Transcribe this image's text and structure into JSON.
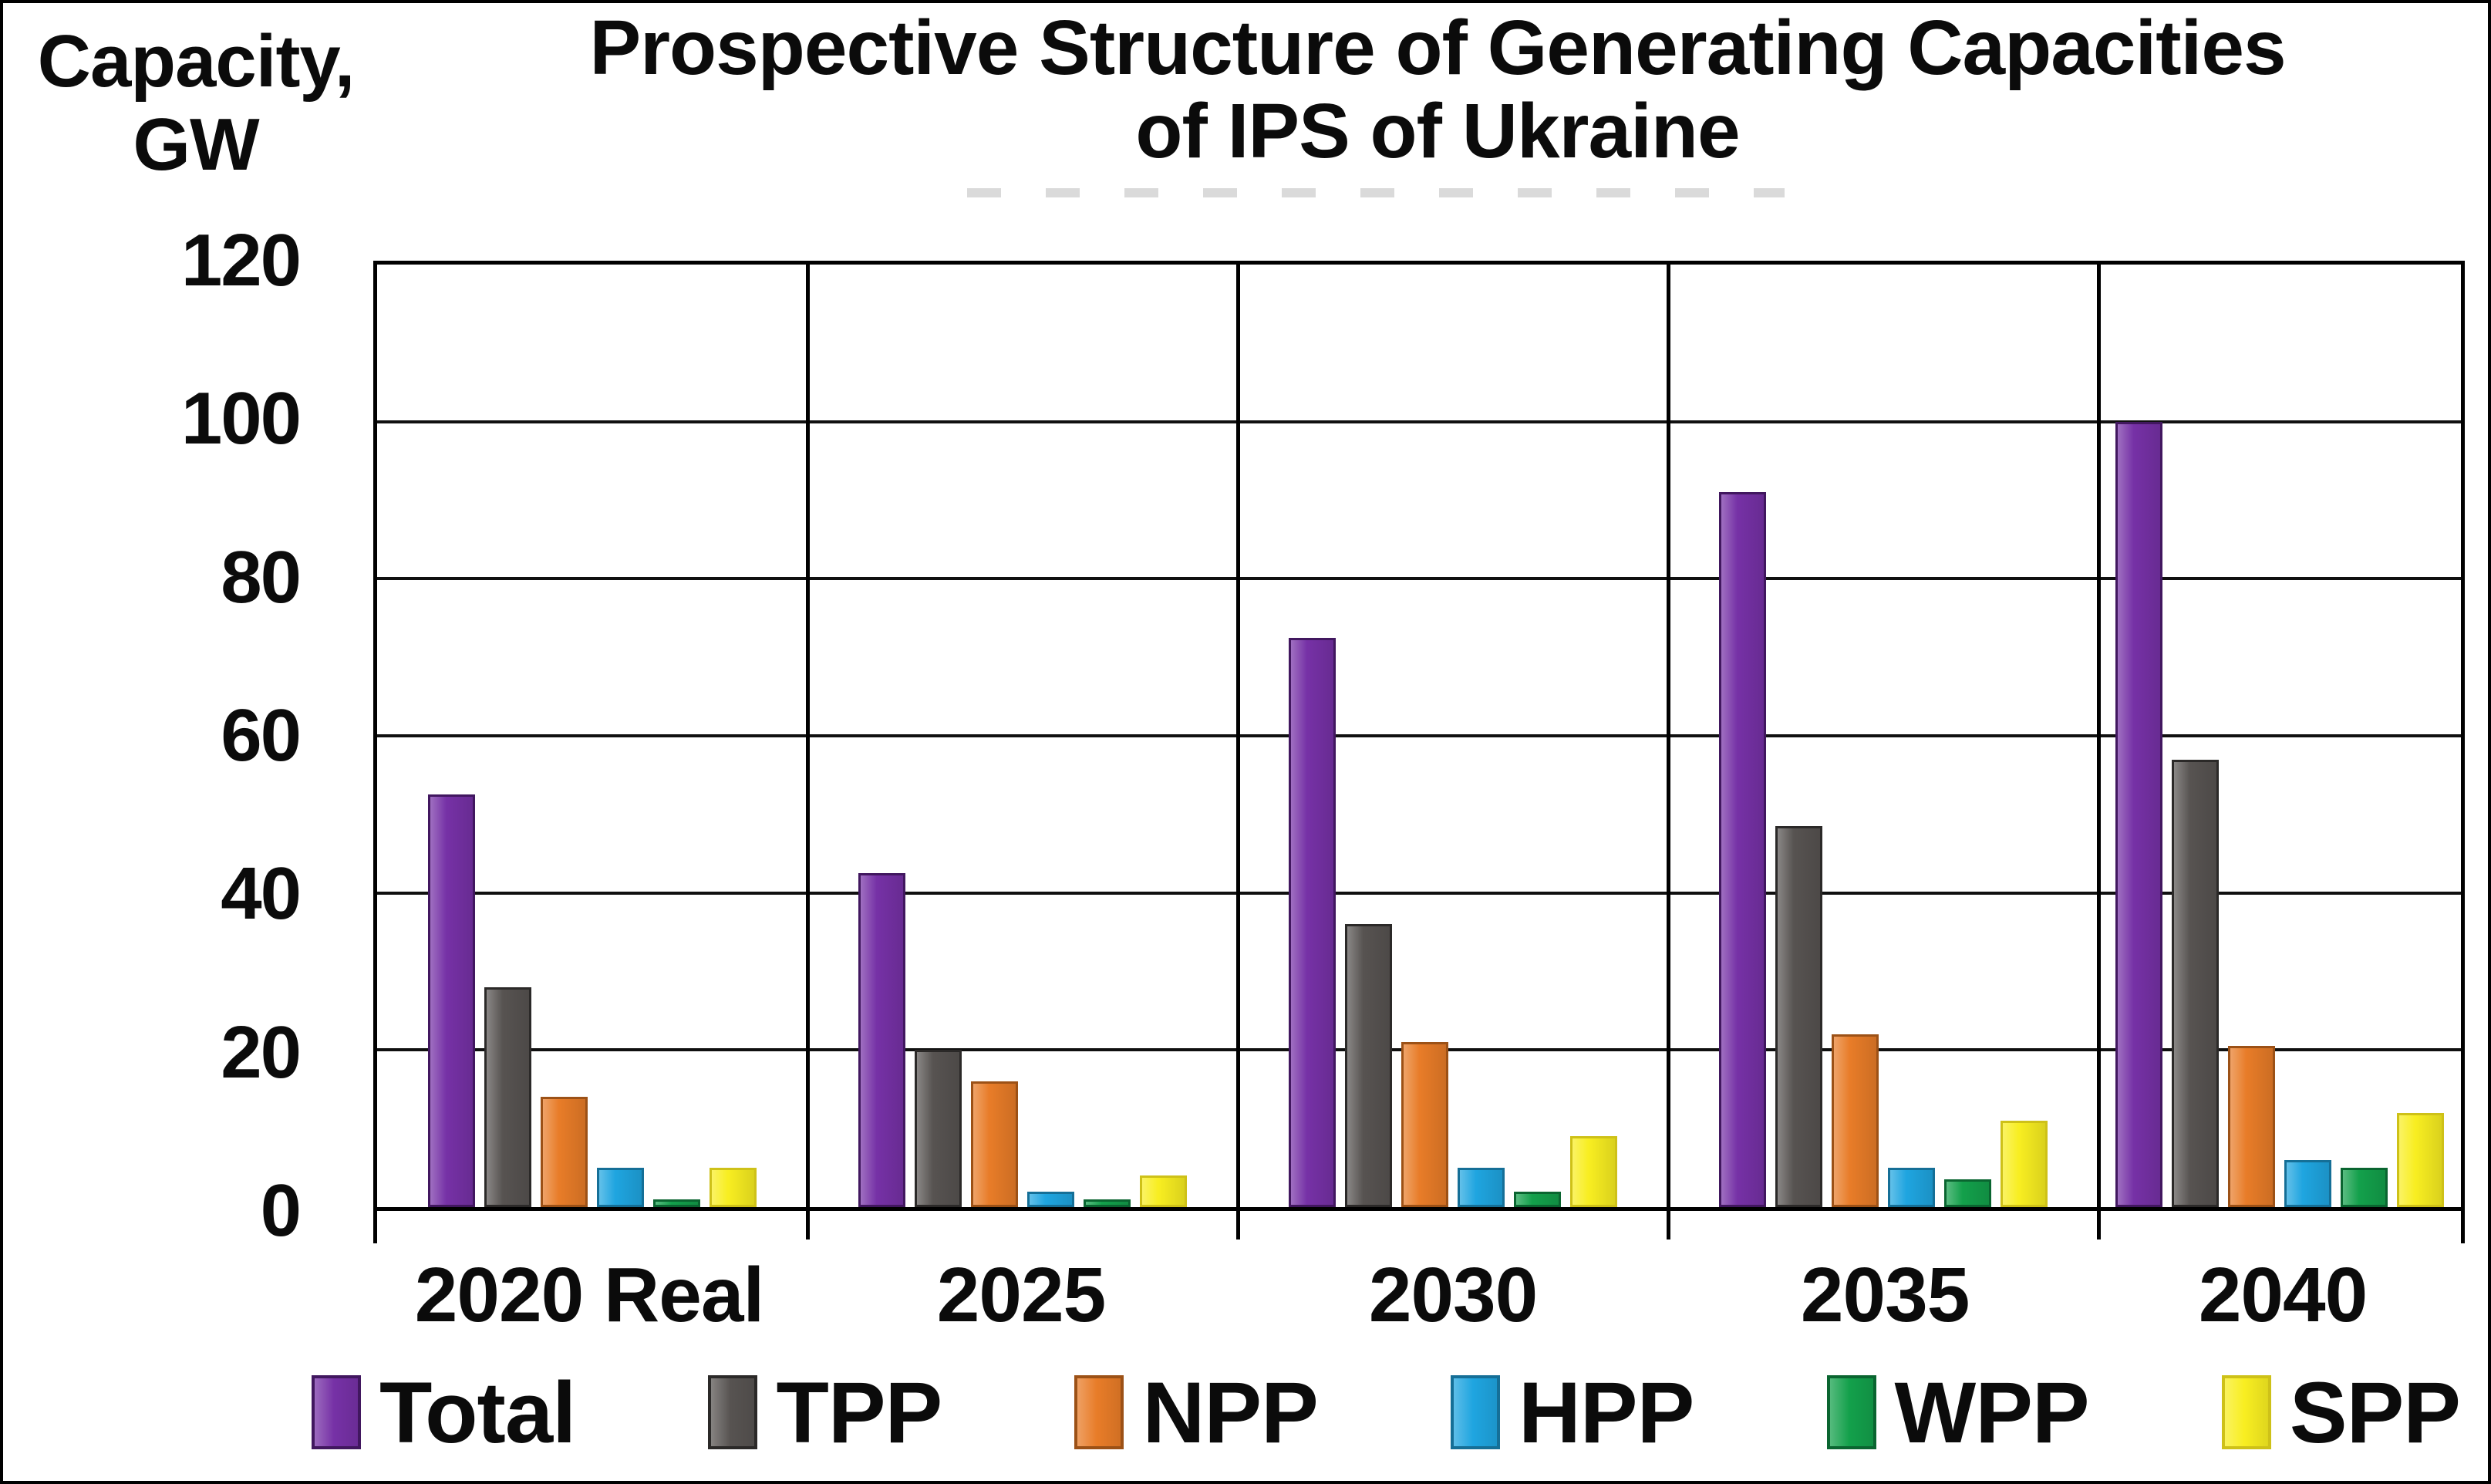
{
  "header": {
    "y_axis_label_line1": "Capacity,",
    "y_axis_label_line2": "GW",
    "title_line1": "Prospective Structure of Generating Capacities",
    "title_line2": "of IPS of Ukraine"
  },
  "chart_data": {
    "type": "bar",
    "title": "Prospective Structure of Generating Capacities of IPS of Ukraine",
    "ylabel": "Capacity, GW",
    "xlabel": "",
    "ylim": [
      0,
      120
    ],
    "yticks": [
      0,
      20,
      40,
      60,
      80,
      100,
      120
    ],
    "grid": "horizontal gridlines every 20 GW; vertical divider line between each category panel",
    "legend_position": "bottom",
    "categories": [
      "2020 Real",
      "2025",
      "2030",
      "2035",
      "2040"
    ],
    "panel_boundaries_percent": [
      0,
      20.65,
      41.3,
      61.95,
      82.6,
      100
    ],
    "series": [
      {
        "name": "Total",
        "color": "#7631A6",
        "border_color": "#41175F",
        "values": [
          52.5,
          42.5,
          72.5,
          91,
          100
        ]
      },
      {
        "name": "TPP",
        "color": "#575351",
        "border_color": "#2B2928",
        "values": [
          28,
          20,
          36,
          48.5,
          57
        ]
      },
      {
        "name": "NPP",
        "color": "#E87C28",
        "border_color": "#9C5116",
        "values": [
          14,
          16,
          21,
          22,
          20.5
        ]
      },
      {
        "name": "HPP",
        "color": "#1FA5E0",
        "border_color": "#156F97",
        "values": [
          5,
          2,
          5,
          5,
          6
        ]
      },
      {
        "name": "WPP",
        "color": "#13A04B",
        "border_color": "#0A6530",
        "values": [
          1,
          1,
          2,
          3.5,
          5
        ]
      },
      {
        "name": "SPP",
        "color": "#F8EE21",
        "border_color": "#CEC118",
        "values": [
          5,
          4,
          9,
          11,
          12
        ]
      }
    ]
  }
}
